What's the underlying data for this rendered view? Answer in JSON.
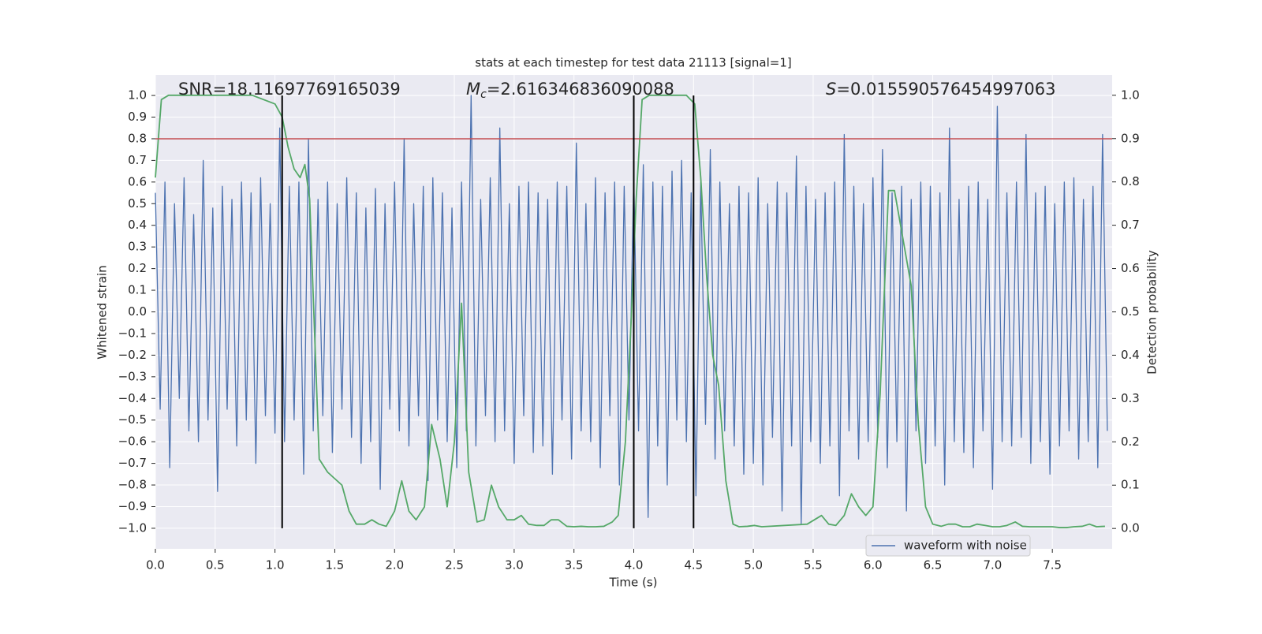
{
  "chart_data": {
    "type": "line",
    "title": "stats at each timestep for test data 21113 [signal=1]",
    "xlabel": "Time (s)",
    "ylabel": "Whitened strain",
    "y2label": "Detection probability",
    "annotations": [
      {
        "text": "SNR=18.11697769165039"
      },
      {
        "symbol": "M",
        "subscript": "c",
        "text": "=2.616346836090088"
      },
      {
        "symbol": "S",
        "text": "=0.015590576454997063"
      }
    ],
    "xlim": [
      0,
      8
    ],
    "xticks": [
      {
        "value": 0,
        "label": "0.0"
      },
      0.5,
      {
        "value": 1,
        "label": "1.0"
      },
      1.5,
      {
        "value": 2,
        "label": "2.0"
      },
      2.5,
      {
        "value": 3,
        "label": "3.0"
      },
      3.5,
      {
        "value": 4,
        "label": "4.0"
      },
      4.5,
      {
        "value": 5,
        "label": "5.0"
      },
      5.5,
      {
        "value": 6,
        "label": "6.0"
      },
      6.5,
      {
        "value": 7,
        "label": "7.0"
      },
      7.5
    ],
    "ylim": [
      -1.095,
      1.095
    ],
    "yticks": [
      {
        "value": -1,
        "label": "−1.0"
      },
      {
        "value": -0.9,
        "label": "−0.9"
      },
      {
        "value": -0.8,
        "label": "−0.8"
      },
      {
        "value": -0.7,
        "label": "−0.7"
      },
      {
        "value": -0.6,
        "label": "−0.6"
      },
      {
        "value": -0.5,
        "label": "−0.5"
      },
      {
        "value": -0.4,
        "label": "−0.4"
      },
      {
        "value": -0.3,
        "label": "−0.3"
      },
      {
        "value": -0.2,
        "label": "−0.2"
      },
      {
        "value": -0.1,
        "label": "−0.1"
      },
      {
        "value": 0,
        "label": "0.0"
      },
      0.1,
      0.2,
      0.3,
      0.4,
      0.5,
      0.6,
      0.7,
      0.8,
      0.9,
      {
        "value": 1,
        "label": "1.0"
      }
    ],
    "y2lim": [
      -0.047,
      1.047
    ],
    "y2ticks": [
      {
        "value": 0,
        "label": "0.0"
      },
      0.1,
      0.2,
      0.3,
      0.4,
      0.5,
      0.6,
      0.7,
      0.8,
      0.9,
      {
        "value": 1,
        "label": "1.0"
      }
    ],
    "grid": true,
    "legend": "lower right",
    "hline": {
      "value": 0.8,
      "color": "#c44e52"
    },
    "vlines": {
      "x": [
        1.06,
        4.0,
        4.5
      ],
      "span": [
        -1,
        1
      ],
      "color": "#000000"
    },
    "series": [
      {
        "name": "waveform with noise",
        "color": "#4c72b0",
        "x": [
          0,
          0.04,
          0.08,
          0.12,
          0.16,
          0.2,
          0.24,
          0.28,
          0.32,
          0.36,
          0.4,
          0.44,
          0.48,
          0.52,
          0.56,
          0.6,
          0.64,
          0.68,
          0.72,
          0.76,
          0.8,
          0.84,
          0.88,
          0.92,
          0.96,
          1,
          1.04,
          1.08,
          1.12,
          1.16,
          1.2,
          1.24,
          1.28,
          1.32,
          1.36,
          1.4,
          1.44,
          1.48,
          1.52,
          1.56,
          1.6,
          1.64,
          1.68,
          1.72,
          1.76,
          1.8,
          1.84,
          1.88,
          1.92,
          1.96,
          2,
          2.04,
          2.08,
          2.12,
          2.16,
          2.2,
          2.24,
          2.28,
          2.32,
          2.36,
          2.4,
          2.44,
          2.48,
          2.52,
          2.56,
          2.6,
          2.64,
          2.68,
          2.72,
          2.76,
          2.8,
          2.84,
          2.88,
          2.92,
          2.96,
          3,
          3.04,
          3.08,
          3.12,
          3.16,
          3.2,
          3.24,
          3.28,
          3.32,
          3.36,
          3.4,
          3.44,
          3.48,
          3.52,
          3.56,
          3.6,
          3.64,
          3.68,
          3.72,
          3.76,
          3.8,
          3.84,
          3.88,
          3.92,
          3.96,
          4,
          4.04,
          4.08,
          4.12,
          4.16,
          4.2,
          4.24,
          4.28,
          4.32,
          4.36,
          4.4,
          4.44,
          4.48,
          4.52,
          4.56,
          4.6,
          4.64,
          4.68,
          4.72,
          4.76,
          4.8,
          4.84,
          4.88,
          4.92,
          4.96,
          5,
          5.04,
          5.08,
          5.12,
          5.16,
          5.2,
          5.24,
          5.28,
          5.32,
          5.36,
          5.4,
          5.44,
          5.48,
          5.52,
          5.56,
          5.6,
          5.64,
          5.68,
          5.72,
          5.76,
          5.8,
          5.84,
          5.88,
          5.92,
          5.96,
          6,
          6.04,
          6.08,
          6.12,
          6.16,
          6.2,
          6.24,
          6.28,
          6.32,
          6.36,
          6.4,
          6.44,
          6.48,
          6.52,
          6.56,
          6.6,
          6.64,
          6.68,
          6.72,
          6.76,
          6.8,
          6.84,
          6.88,
          6.92,
          6.96,
          7,
          7.04,
          7.08,
          7.12,
          7.16,
          7.2,
          7.24,
          7.28,
          7.32,
          7.36,
          7.4,
          7.44,
          7.48,
          7.52,
          7.56,
          7.6,
          7.64,
          7.68,
          7.72,
          7.76,
          7.8,
          7.84,
          7.88,
          7.92,
          7.96
        ],
        "values": [
          0.55,
          -0.45,
          0.6,
          -0.72,
          0.5,
          -0.4,
          0.62,
          -0.55,
          0.45,
          -0.6,
          0.7,
          -0.5,
          0.48,
          -0.83,
          0.58,
          -0.45,
          0.52,
          -0.62,
          0.6,
          -0.5,
          0.55,
          -0.7,
          0.62,
          -0.48,
          0.5,
          -0.56,
          0.85,
          -0.6,
          0.58,
          -0.5,
          0.6,
          -0.75,
          0.8,
          -0.55,
          0.52,
          -0.48,
          0.6,
          -0.65,
          0.5,
          -0.45,
          0.62,
          -0.58,
          0.55,
          -0.7,
          0.48,
          -0.6,
          0.57,
          -0.82,
          0.5,
          -0.45,
          0.6,
          -0.55,
          0.8,
          -0.62,
          0.5,
          -0.48,
          0.58,
          -0.78,
          0.62,
          -0.5,
          0.55,
          -0.6,
          0.48,
          -0.72,
          0.6,
          -0.55,
          1.0,
          -0.62,
          0.52,
          -0.48,
          0.62,
          -0.6,
          0.85,
          -0.55,
          0.5,
          -0.7,
          0.58,
          -0.48,
          0.6,
          -0.65,
          0.55,
          -0.62,
          0.52,
          -0.75,
          0.6,
          -0.5,
          0.58,
          -0.68,
          0.78,
          -0.55,
          0.5,
          -0.6,
          0.62,
          -0.72,
          0.55,
          -0.48,
          0.6,
          -0.8,
          0.58,
          -0.5,
          0.62,
          -0.55,
          0.68,
          -0.95,
          0.6,
          -0.62,
          0.58,
          -0.8,
          0.65,
          -0.5,
          0.7,
          -0.6,
          0.55,
          -0.85,
          0.6,
          -0.52,
          0.75,
          -0.68,
          0.6,
          -0.55,
          0.5,
          -0.62,
          0.58,
          -0.75,
          0.55,
          -0.7,
          0.62,
          -0.8,
          0.5,
          -0.58,
          0.6,
          -0.92,
          0.55,
          -0.62,
          0.72,
          -0.98,
          0.58,
          -0.6,
          0.52,
          -0.7,
          0.55,
          -0.62,
          0.6,
          -0.85,
          0.82,
          -0.55,
          0.58,
          -0.68,
          0.5,
          -0.6,
          0.62,
          -0.58,
          0.75,
          -0.72,
          0.55,
          -0.6,
          0.58,
          -0.92,
          0.52,
          -0.55,
          0.6,
          -0.7,
          0.58,
          -0.62,
          0.55,
          -0.8,
          0.85,
          -0.6,
          0.52,
          -0.65,
          0.58,
          -0.72,
          0.6,
          -0.55,
          0.52,
          -0.82,
          0.95,
          -0.6,
          0.55,
          -0.62,
          0.6,
          -0.58,
          0.82,
          -0.7,
          0.55,
          -0.6,
          0.58,
          -0.75,
          0.5,
          -0.62,
          0.6,
          -0.55,
          0.62,
          -0.68,
          0.52,
          -0.6,
          0.58,
          -0.72,
          0.82,
          -0.55
        ]
      },
      {
        "color": "#55a868",
        "axis": "y2",
        "x": [
          0,
          0.05,
          0.11,
          0.81,
          1.0,
          1.06,
          1.11,
          1.16,
          1.21,
          1.25,
          1.29,
          1.37,
          1.44,
          1.56,
          1.62,
          1.68,
          1.75,
          1.81,
          1.87,
          1.93,
          2.0,
          2.06,
          2.12,
          2.18,
          2.25,
          2.31,
          2.38,
          2.44,
          2.5,
          2.56,
          2.62,
          2.69,
          2.75,
          2.81,
          2.87,
          2.94,
          3.0,
          3.06,
          3.12,
          3.19,
          3.25,
          3.31,
          3.37,
          3.44,
          3.5,
          3.56,
          3.62,
          3.68,
          3.75,
          3.82,
          3.87,
          3.93,
          3.98,
          4.02,
          4.07,
          4.13,
          4.38,
          4.44,
          4.51,
          4.56,
          4.61,
          4.66,
          4.71,
          4.77,
          4.83,
          4.88,
          4.95,
          5.01,
          5.07,
          5.45,
          5.51,
          5.57,
          5.63,
          5.69,
          5.76,
          5.82,
          5.88,
          5.94,
          6.0,
          6.06,
          6.13,
          6.18,
          6.25,
          6.32,
          6.38,
          6.44,
          6.5,
          6.57,
          6.63,
          6.69,
          6.75,
          6.81,
          6.87,
          6.94,
          7.0,
          7.06,
          7.12,
          7.19,
          7.25,
          7.31,
          7.37,
          7.44,
          7.5,
          7.56,
          7.62,
          7.68,
          7.75,
          7.81,
          7.87,
          7.94
        ],
        "values": [
          0.81,
          0.99,
          1.0,
          1.0,
          0.98,
          0.95,
          0.88,
          0.83,
          0.81,
          0.84,
          0.76,
          0.16,
          0.13,
          0.1,
          0.04,
          0.01,
          0.01,
          0.02,
          0.01,
          0.005,
          0.04,
          0.11,
          0.04,
          0.02,
          0.05,
          0.24,
          0.16,
          0.05,
          0.2,
          0.52,
          0.13,
          0.015,
          0.02,
          0.1,
          0.05,
          0.02,
          0.02,
          0.03,
          0.01,
          0.007,
          0.007,
          0.02,
          0.02,
          0.005,
          0.004,
          0.005,
          0.004,
          0.004,
          0.005,
          0.015,
          0.03,
          0.2,
          0.49,
          0.76,
          0.99,
          1.0,
          1.0,
          1.0,
          0.98,
          0.81,
          0.58,
          0.4,
          0.33,
          0.11,
          0.01,
          0.004,
          0.005,
          0.007,
          0.004,
          0.01,
          0.02,
          0.03,
          0.01,
          0.007,
          0.03,
          0.08,
          0.05,
          0.03,
          0.05,
          0.31,
          0.78,
          0.78,
          0.67,
          0.56,
          0.24,
          0.05,
          0.01,
          0.005,
          0.01,
          0.01,
          0.004,
          0.004,
          0.01,
          0.007,
          0.004,
          0.004,
          0.007,
          0.015,
          0.005,
          0.004,
          0.004,
          0.004,
          0.004,
          0.002,
          0.002,
          0.004,
          0.005,
          0.01,
          0.004,
          0.005
        ]
      }
    ]
  }
}
